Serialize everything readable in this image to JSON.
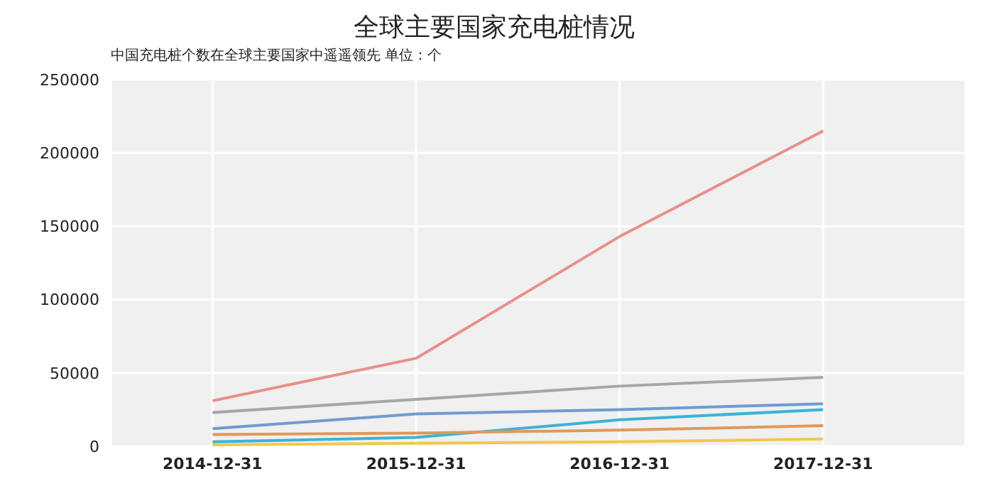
{
  "chart_data": {
    "type": "line",
    "title": "全球主要国家充电桩情况",
    "subtitle": "中国充电桩个数在全球主要国家中遥遥领先  单位：个",
    "categories": [
      "2014-12-31",
      "2015-12-31",
      "2016-12-31",
      "2017-12-31"
    ],
    "series": [
      {
        "color": "#e8908a",
        "values": [
          31000,
          60000,
          143000,
          215000
        ]
      },
      {
        "color": "#a6a6a6",
        "values": [
          23000,
          32000,
          41000,
          47000
        ]
      },
      {
        "color": "#6f9bd1",
        "values": [
          12000,
          22000,
          25000,
          29000
        ]
      },
      {
        "color": "#3bb3d6",
        "values": [
          3000,
          6000,
          18000,
          25000
        ]
      },
      {
        "color": "#e0995a",
        "values": [
          8000,
          9000,
          11000,
          14000
        ]
      },
      {
        "color": "#f2c84b",
        "values": [
          1000,
          2000,
          3000,
          5000
        ]
      }
    ],
    "ylim": [
      0,
      250000
    ],
    "yticks": [
      0,
      50000,
      100000,
      150000,
      200000,
      250000
    ],
    "grid": true,
    "legend": false,
    "marker": "none",
    "line_style": "solid"
  }
}
